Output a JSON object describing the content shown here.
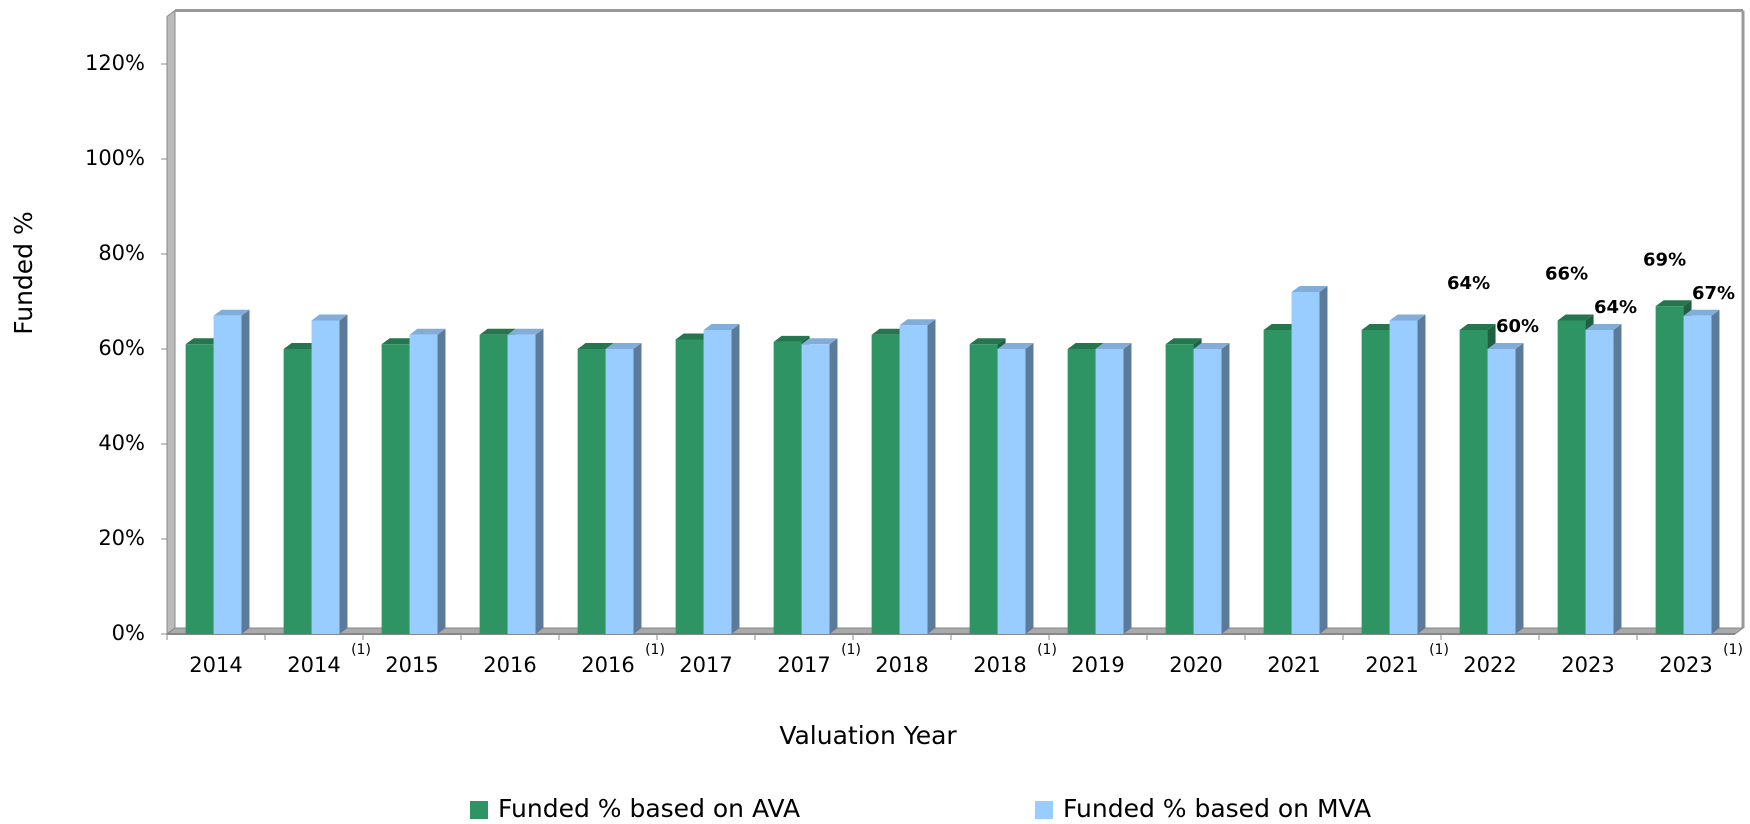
{
  "chart_data": {
    "type": "bar",
    "y_axis_label": "Funded %",
    "x_axis_label": "Valuation Year",
    "categories": [
      "2014",
      "2014",
      "2015",
      "2016",
      "2016",
      "2017",
      "2017",
      "2018",
      "2018",
      "2019",
      "2020",
      "2021",
      "2021",
      "2022",
      "2023",
      "2023"
    ],
    "category_notes": [
      null,
      "(1)",
      null,
      null,
      "(1)",
      null,
      "(1)",
      null,
      "(1)",
      null,
      null,
      null,
      "(1)",
      null,
      null,
      "(1)"
    ],
    "series": [
      {
        "name": "Funded % based on AVA",
        "color": "#2e9463",
        "values": [
          61,
          60,
          61,
          63,
          60,
          62,
          61.5,
          63,
          61,
          60,
          61,
          64,
          64,
          64,
          66,
          69
        ],
        "value_labels": [
          null,
          null,
          null,
          null,
          null,
          null,
          null,
          null,
          null,
          null,
          null,
          null,
          null,
          "64%",
          "66%",
          "69%"
        ]
      },
      {
        "name": "Funded % based on MVA",
        "color": "#99ccff",
        "values": [
          67,
          66,
          63,
          63,
          60,
          64,
          61,
          65,
          60,
          60,
          60,
          72,
          66,
          60,
          64,
          67
        ],
        "value_labels": [
          null,
          null,
          null,
          null,
          null,
          null,
          null,
          null,
          null,
          null,
          null,
          null,
          null,
          "60%",
          "64%",
          "67%"
        ]
      }
    ],
    "ylim": [
      0,
      130
    ],
    "yticks": [
      {
        "value": 0,
        "label": "0%"
      },
      {
        "value": 20,
        "label": "20%"
      },
      {
        "value": 40,
        "label": "40%"
      },
      {
        "value": 60,
        "label": "60%"
      },
      {
        "value": 80,
        "label": "80%"
      },
      {
        "value": 100,
        "label": "100%"
      },
      {
        "value": 120,
        "label": "120%"
      }
    ]
  }
}
